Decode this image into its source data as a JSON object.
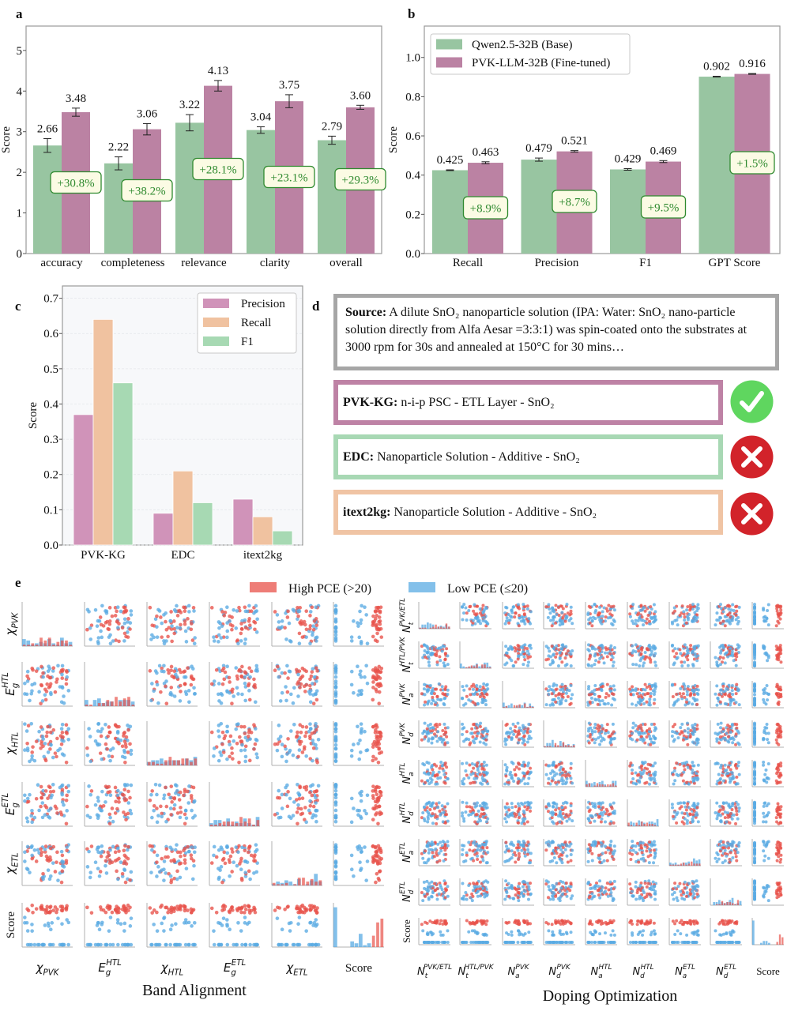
{
  "panel_labels": {
    "a": "a",
    "b": "b",
    "c": "c",
    "d": "d",
    "e": "e"
  },
  "colors": {
    "base": "#98c5a1",
    "tuned": "#bb82a3",
    "precision": "#d093b9",
    "recall": "#f0c2a0",
    "f1": "#a7d9b3",
    "high_pce": "#e8524a",
    "low_pce": "#5aabe3",
    "improvement_text": "#2f8a2f",
    "improvement_bg": "#fbfbe4",
    "check": "#5fd65f",
    "cross": "#d2232a"
  },
  "chart_data": [
    {
      "id": "a",
      "type": "bar",
      "categories": [
        "accuracy",
        "completeness",
        "relevance",
        "clarity",
        "overall"
      ],
      "series": [
        {
          "values": [
            2.66,
            2.22,
            3.22,
            3.04,
            2.79
          ],
          "errors": [
            0.17,
            0.16,
            0.2,
            0.08,
            0.1
          ]
        },
        {
          "values": [
            3.48,
            3.06,
            4.13,
            3.75,
            3.6
          ],
          "errors": [
            0.1,
            0.14,
            0.13,
            0.16,
            0.05
          ]
        }
      ],
      "improvements": [
        "+30.8%",
        "+38.2%",
        "+28.1%",
        "+23.1%",
        "+29.3%"
      ],
      "ylabel": "Score",
      "ylim": [
        0,
        5.6
      ],
      "yticks": [
        0,
        1,
        2,
        3,
        4,
        5
      ],
      "grid": false
    },
    {
      "id": "b",
      "type": "bar",
      "categories": [
        "Recall",
        "Precision",
        "F1",
        "GPT Score"
      ],
      "series": [
        {
          "name": "Qwen2.5-32B (Base)",
          "values": [
            0.425,
            0.479,
            0.429,
            0.902
          ],
          "errors": [
            0.002,
            0.008,
            0.004,
            0.002
          ]
        },
        {
          "name": "PVK-LLM-32B (Fine-tuned)",
          "values": [
            0.463,
            0.521,
            0.469,
            0.916
          ],
          "errors": [
            0.005,
            0.004,
            0.005,
            0.002
          ]
        }
      ],
      "improvements": [
        "+8.9%",
        "+8.7%",
        "+9.5%",
        "+1.5%"
      ],
      "ylabel": "Score",
      "ylim": [
        0,
        1.16
      ],
      "yticks": [
        0.0,
        0.2,
        0.4,
        0.6,
        0.8,
        1.0
      ],
      "legend": "top-left",
      "grid": false
    },
    {
      "id": "c",
      "type": "bar",
      "categories": [
        "PVK-KG",
        "EDC",
        "itext2kg"
      ],
      "series": [
        {
          "name": "Precision",
          "values": [
            0.37,
            0.09,
            0.13
          ]
        },
        {
          "name": "Recall",
          "values": [
            0.64,
            0.21,
            0.08
          ]
        },
        {
          "name": "F1",
          "values": [
            0.46,
            0.12,
            0.04
          ]
        }
      ],
      "ylabel": "Score",
      "ylim": [
        0,
        0.735
      ],
      "yticks": [
        0.0,
        0.1,
        0.2,
        0.3,
        0.4,
        0.5,
        0.6,
        0.7
      ],
      "legend": "top-right",
      "grid": true
    },
    {
      "id": "e",
      "type": "scatter",
      "subtype": "pair-plot matrix with diagonal histograms",
      "legend": [
        {
          "label": "High PCE (>20)",
          "color": "#e8524a"
        },
        {
          "label": "Low PCE (≤20)",
          "color": "#5aabe3"
        }
      ],
      "legend_placement": "top",
      "groups": [
        {
          "title": "Band Alignment",
          "variables": [
            {
              "base": "χ",
              "sub": "PVK"
            },
            {
              "base": "E",
              "sub": "g",
              "sup": "HTL"
            },
            {
              "base": "χ",
              "sub": "HTL"
            },
            {
              "base": "E",
              "sub": "g",
              "sup": "ETL"
            },
            {
              "base": "χ",
              "sub": "ETL"
            },
            {
              "base": "Score"
            }
          ]
        },
        {
          "title": "Doping Optimization",
          "variables": [
            {
              "base": "N",
              "sub": "t",
              "sup": "PVK/ETL"
            },
            {
              "base": "N",
              "sub": "t",
              "sup": "HTL/PVK"
            },
            {
              "base": "N",
              "sub": "a",
              "sup": "PVK"
            },
            {
              "base": "N",
              "sub": "d",
              "sup": "PVK"
            },
            {
              "base": "N",
              "sub": "a",
              "sup": "HTL"
            },
            {
              "base": "N",
              "sub": "d",
              "sup": "HTL"
            },
            {
              "base": "N",
              "sub": "a",
              "sup": "ETL"
            },
            {
              "base": "N",
              "sub": "d",
              "sup": "ETL"
            },
            {
              "base": "Score"
            }
          ]
        }
      ]
    }
  ],
  "panel_d": {
    "source": {
      "label": "Source:",
      "text": "A dilute SnO₂ nanoparticle solution (IPA: Water: SnO₂ nano-particle solution directly from Alfa Aesar =3:3:1) was spin-coated onto the substrates at 3000 rpm for 30s and annealed at 150°C for 30 mins…"
    },
    "results": [
      {
        "label": "PVK-KG:",
        "text": "n-i-p PSC - ETL Layer - SnO₂",
        "border": "#be82a5",
        "verdict": "check-icon"
      },
      {
        "label": "EDC:",
        "text": "Nanoparticle Solution - Additive - SnO₂",
        "border": "#a8d8b4",
        "verdict": "cross-icon"
      },
      {
        "label": "itext2kg:",
        "text": "Nanoparticle Solution - Additive - SnO₂",
        "border": "#f0c4a4",
        "verdict": "cross-icon"
      }
    ]
  }
}
